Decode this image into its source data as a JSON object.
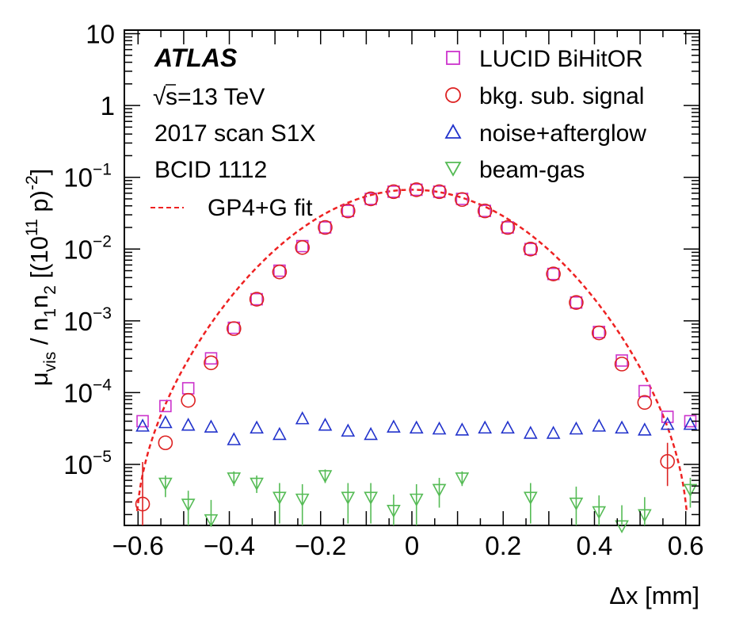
{
  "chart_data": {
    "type": "scatter",
    "title": "",
    "xlabel": "Δx [mm]",
    "ylabel_parts": {
      "mu": "μ",
      "vis": "vis",
      "slash_n": " / n",
      "sub1": "1",
      "n": "n",
      "sub2": "2",
      "pre": " [(10",
      "p11": "11",
      "mid": " p)",
      "pm2": "-2",
      "post": "]"
    },
    "xlim": [
      -0.63,
      0.63
    ],
    "ylim_log10": [
      -5.85,
      1.05
    ],
    "x_ticks": [
      {
        "v": -0.6,
        "label": "−0.6"
      },
      {
        "v": -0.4,
        "label": "−0.4"
      },
      {
        "v": -0.2,
        "label": "−0.2"
      },
      {
        "v": 0.0,
        "label": "0"
      },
      {
        "v": 0.2,
        "label": "0.2"
      },
      {
        "v": 0.4,
        "label": "0.4"
      },
      {
        "v": 0.6,
        "label": "0.6"
      }
    ],
    "y_ticks": [
      {
        "exp": 1,
        "label": "10"
      },
      {
        "exp": 0,
        "label": "1"
      },
      {
        "exp": -1,
        "label": "10",
        "sup": "−1"
      },
      {
        "exp": -2,
        "label": "10",
        "sup": "−2"
      },
      {
        "exp": -3,
        "label": "10",
        "sup": "−3"
      },
      {
        "exp": -4,
        "label": "10",
        "sup": "−4"
      },
      {
        "exp": -5,
        "label": "10",
        "sup": "−5"
      }
    ],
    "annotations": {
      "atlas": "ATLAS",
      "sqrt": "√",
      "energy": "s=13 TeV",
      "scan": "2017 scan S1X",
      "bcid": "BCID 1112"
    },
    "legend": {
      "lucid": "LUCID BiHitOR",
      "signal": "bkg. sub. signal",
      "noise": "noise+afterglow",
      "beamgas": "beam-gas",
      "fit": "GP4+G fit"
    },
    "colors": {
      "lucid": "#cc33cc",
      "signal": "#dd2222",
      "noise": "#2233cc",
      "beamgas": "#55bb55",
      "fit": "#ee2222"
    },
    "fit": {
      "peak": 0.067,
      "center": 0.0,
      "sigma": 0.165,
      "cutoff": 0.61
    },
    "series": [
      {
        "name": "LUCID BiHitOR",
        "marker": "square",
        "x": [
          -0.59,
          -0.54,
          -0.49,
          -0.44,
          -0.39,
          -0.34,
          -0.29,
          -0.24,
          -0.19,
          -0.14,
          -0.09,
          -0.04,
          0.01,
          0.06,
          0.11,
          0.16,
          0.21,
          0.26,
          0.31,
          0.36,
          0.41,
          0.46,
          0.51,
          0.56,
          0.61
        ],
        "y": [
          4e-05,
          6.5e-05,
          0.000115,
          0.0003,
          0.0008,
          0.002,
          0.005,
          0.011,
          0.02,
          0.034,
          0.05,
          0.063,
          0.067,
          0.063,
          0.05,
          0.034,
          0.02,
          0.01,
          0.0045,
          0.0018,
          0.0007,
          0.00028,
          0.000105,
          4.6e-05,
          4e-05
        ]
      },
      {
        "name": "bkg. sub. signal",
        "marker": "circle",
        "x": [
          -0.59,
          -0.54,
          -0.49,
          -0.44,
          -0.39,
          -0.34,
          -0.29,
          -0.24,
          -0.19,
          -0.14,
          -0.09,
          -0.04,
          0.01,
          0.06,
          0.11,
          0.16,
          0.21,
          0.26,
          0.31,
          0.36,
          0.41,
          0.46,
          0.51,
          0.56
        ],
        "y": [
          2.8e-06,
          2e-05,
          7.8e-05,
          0.00026,
          0.00078,
          0.002,
          0.0048,
          0.0105,
          0.02,
          0.034,
          0.05,
          0.063,
          0.067,
          0.063,
          0.049,
          0.034,
          0.02,
          0.01,
          0.0045,
          0.0018,
          0.00068,
          0.00025,
          7.3e-05,
          1.1e-05
        ],
        "err_lo": [
          1.5e-06,
          0,
          0,
          0,
          0,
          0,
          0,
          0,
          0,
          0,
          0,
          0,
          0,
          0,
          0,
          0,
          0,
          0,
          0,
          0,
          0,
          0,
          0,
          6e-06
        ],
        "err_hi": [
          8e-06,
          0,
          0,
          0,
          0,
          0,
          0,
          0,
          0,
          0,
          0,
          0,
          0,
          0,
          0,
          0,
          0,
          0,
          0,
          0,
          0,
          0,
          0,
          9e-06
        ]
      },
      {
        "name": "noise+afterglow",
        "marker": "triangle-up",
        "x": [
          -0.59,
          -0.54,
          -0.49,
          -0.44,
          -0.39,
          -0.34,
          -0.29,
          -0.24,
          -0.19,
          -0.14,
          -0.09,
          -0.04,
          0.01,
          0.06,
          0.11,
          0.16,
          0.21,
          0.26,
          0.31,
          0.36,
          0.41,
          0.46,
          0.51,
          0.56,
          0.61
        ],
        "y": [
          3.4e-05,
          3.8e-05,
          3.5e-05,
          3.3e-05,
          2.2e-05,
          3.2e-05,
          2.6e-05,
          4.3e-05,
          3.5e-05,
          2.9e-05,
          2.6e-05,
          3.3e-05,
          3.2e-05,
          3.1e-05,
          3e-05,
          3.2e-05,
          3.2e-05,
          2.7e-05,
          2.7e-05,
          3.1e-05,
          3.4e-05,
          3.2e-05,
          3e-05,
          3.6e-05,
          3.6e-05
        ]
      },
      {
        "name": "beam-gas",
        "marker": "triangle-down",
        "x": [
          -0.54,
          -0.49,
          -0.44,
          -0.39,
          -0.34,
          -0.29,
          -0.24,
          -0.19,
          -0.14,
          -0.09,
          -0.04,
          0.01,
          0.06,
          0.11,
          0.26,
          0.36,
          0.41,
          0.46,
          0.51,
          0.61
        ],
        "y": [
          5.5e-06,
          2.8e-06,
          1.7e-06,
          6.5e-06,
          5.5e-06,
          3.5e-06,
          3.3e-06,
          7e-06,
          3.5e-06,
          3.5e-06,
          2.3e-06,
          3.3e-06,
          4.5e-06,
          6.5e-06,
          3.5e-06,
          2.9e-06,
          2.2e-06,
          1.4e-06,
          2e-06,
          4.5e-06
        ],
        "err_lo": [
          2e-06,
          1.5e-06,
          1.2e-06,
          1.5e-06,
          1.5e-06,
          2e-06,
          2e-06,
          1.5e-06,
          2e-06,
          2e-06,
          1.5e-06,
          2e-06,
          2e-06,
          1.5e-06,
          2e-06,
          2e-06,
          1.5e-06,
          1.3e-06,
          1.5e-06,
          2e-06
        ],
        "err_hi": [
          1.5e-06,
          1.5e-06,
          1.5e-06,
          1.5e-06,
          1.5e-06,
          2e-06,
          2e-06,
          1.5e-06,
          2e-06,
          2e-06,
          1.5e-06,
          2e-06,
          2e-06,
          1.5e-06,
          2e-06,
          2e-06,
          1.5e-06,
          1.3e-06,
          1.5e-06,
          2e-06
        ]
      }
    ]
  }
}
